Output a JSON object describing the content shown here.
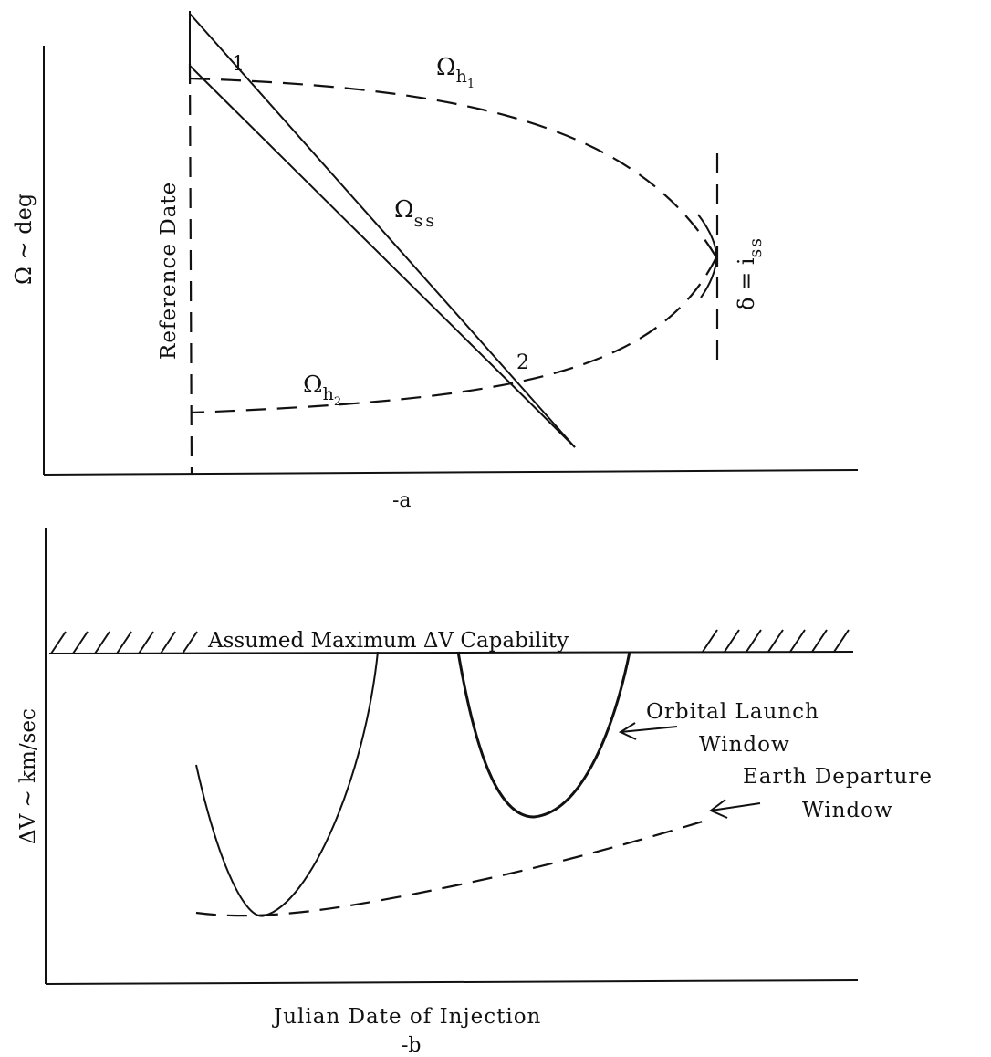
{
  "panel_a": {
    "y_axis_label": "Ω ~ deg",
    "reference_date_label": "Reference Date",
    "omega_h1": {
      "symbol": "Ω",
      "sub": "h",
      "subsub": "1"
    },
    "omega_h2": {
      "symbol": "Ω",
      "sub": "h",
      "subsub": "2"
    },
    "omega_ss": {
      "symbol": "Ω",
      "sub": "ss"
    },
    "intersection_1": "1",
    "intersection_2": "2",
    "inclination_label": {
      "main": "δ = i",
      "sub": "ss"
    },
    "caption": "-a"
  },
  "panel_b": {
    "y_axis_label": "ΔV ~ km/sec",
    "x_axis_label": "Julian Date of Injection",
    "max_dv_label": "Assumed Maximum ΔV Capability",
    "orbital_launch_window": [
      "Orbital Launch",
      "Window"
    ],
    "earth_departure_window": [
      "Earth Departure",
      "Window"
    ],
    "caption": "-b"
  }
}
